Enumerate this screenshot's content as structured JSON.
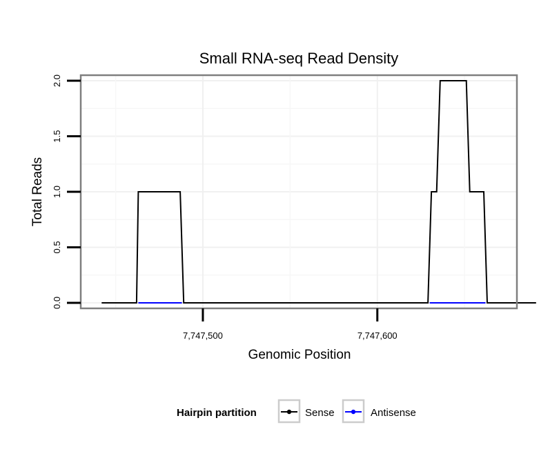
{
  "chart_data": {
    "type": "line",
    "title": "Small RNA-seq Read Density",
    "xlabel": "Genomic Position",
    "ylabel": "Total Reads",
    "xlim": [
      7747430,
      7747680
    ],
    "ylim": [
      -0.05,
      2.05
    ],
    "x_ticks": [
      {
        "value": 7747500,
        "label": "7,747,500"
      },
      {
        "value": 7747600,
        "label": "7,747,600"
      }
    ],
    "y_ticks": [
      {
        "value": 0.0,
        "label": "0.0"
      },
      {
        "value": 0.5,
        "label": "0.5"
      },
      {
        "value": 1.0,
        "label": "1.0"
      },
      {
        "value": 1.5,
        "label": "1.5"
      },
      {
        "value": 2.0,
        "label": "2.0"
      }
    ],
    "series": [
      {
        "name": "Sense",
        "color": "#000000",
        "x": [
          7747442,
          7747462,
          7747463,
          7747487,
          7747489,
          7747629,
          7747631,
          7747634,
          7747636,
          7747651,
          7747653,
          7747661,
          7747663,
          7747691
        ],
        "y": [
          0,
          0,
          1,
          1,
          0,
          0,
          1,
          1,
          2,
          2,
          1,
          1,
          0,
          0
        ]
      },
      {
        "name": "Antisense",
        "color": "#0000ff",
        "x": [
          7747463,
          7747488,
          7747630,
          7747662
        ],
        "y": [
          0,
          0,
          0,
          0
        ],
        "segments": [
          [
            0,
            1
          ],
          [
            2,
            3
          ]
        ]
      }
    ],
    "legend": {
      "title": "Hairpin partition",
      "position": "bottom",
      "items": [
        {
          "label": "Sense",
          "color": "#000000"
        },
        {
          "label": "Antisense",
          "color": "#0000ff"
        }
      ]
    },
    "grid": true
  }
}
